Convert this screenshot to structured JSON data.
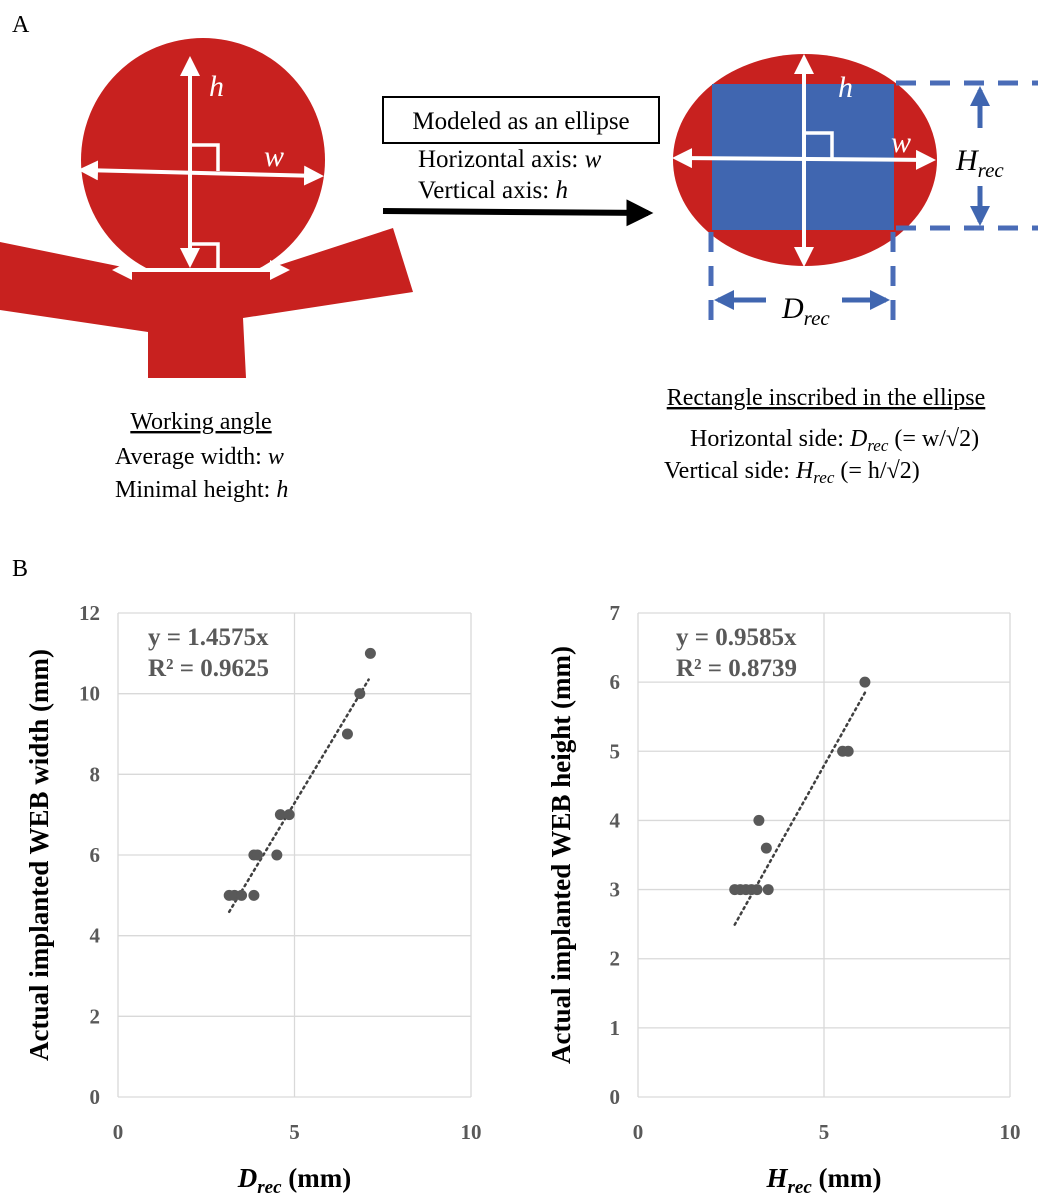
{
  "panel_a": {
    "label": "A",
    "h_symbol": "h",
    "w_symbol": "w",
    "box_title": "Modeled as an ellipse",
    "horizontal_axis_prefix": "Horizontal axis: ",
    "vertical_axis_prefix": "Vertical axis: ",
    "h_rec": "H",
    "d_rec": "D",
    "rec_subscript": "rec",
    "left_caption": {
      "title": "Working angle",
      "width_prefix": "Average width: ",
      "height_prefix": "Minimal height: "
    },
    "right_caption": {
      "title": "Rectangle inscribed in the ellipse",
      "horizontal_prefix": "Horizontal side: ",
      "horizontal_formula": " (= w/√2)",
      "vertical_prefix": "Vertical side: ",
      "vertical_formula": " (= h/√2)"
    },
    "colors": {
      "red": "#C8211F",
      "blue": "#4066B0",
      "blue_dashed": "#4A6CB7"
    }
  },
  "panel_b": {
    "label": "B"
  },
  "chart_data": [
    {
      "type": "scatter",
      "xlabel_main": "D",
      "xlabel_sub": "rec",
      "xlabel_unit": " (mm)",
      "ylabel": "Actual implanted WEB width (mm)",
      "xlim": [
        0,
        10
      ],
      "ylim": [
        0,
        12
      ],
      "xticks": [
        0,
        5,
        10
      ],
      "yticks": [
        0,
        2,
        4,
        6,
        8,
        10,
        12
      ],
      "grid": true,
      "equation": "y = 1.4575x",
      "r2": "R² = 0.9625",
      "trendline": {
        "slope": 1.4575,
        "x_range": [
          3.15,
          7.1
        ]
      },
      "points": [
        {
          "x": 3.15,
          "y": 5
        },
        {
          "x": 3.3,
          "y": 5
        },
        {
          "x": 3.5,
          "y": 5
        },
        {
          "x": 3.85,
          "y": 5
        },
        {
          "x": 3.85,
          "y": 6
        },
        {
          "x": 3.95,
          "y": 6
        },
        {
          "x": 4.5,
          "y": 6
        },
        {
          "x": 4.6,
          "y": 7
        },
        {
          "x": 4.85,
          "y": 7
        },
        {
          "x": 6.5,
          "y": 9
        },
        {
          "x": 6.85,
          "y": 10
        },
        {
          "x": 7.15,
          "y": 11
        }
      ],
      "marker_color": "#595959"
    },
    {
      "type": "scatter",
      "xlabel_main": "H",
      "xlabel_sub": "rec",
      "xlabel_unit": " (mm)",
      "ylabel": "Actual implanted WEB height (mm)",
      "xlim": [
        0,
        10
      ],
      "ylim": [
        0,
        7
      ],
      "xticks": [
        0,
        5,
        10
      ],
      "yticks": [
        0,
        1,
        2,
        3,
        4,
        5,
        6,
        7
      ],
      "grid": true,
      "equation": "y = 0.9585x",
      "r2": "R² = 0.8739",
      "trendline": {
        "slope": 0.9585,
        "x_range": [
          2.6,
          6.1
        ]
      },
      "points": [
        {
          "x": 2.6,
          "y": 3
        },
        {
          "x": 2.75,
          "y": 3
        },
        {
          "x": 2.9,
          "y": 3
        },
        {
          "x": 3.05,
          "y": 3
        },
        {
          "x": 3.2,
          "y": 3
        },
        {
          "x": 3.5,
          "y": 3
        },
        {
          "x": 3.25,
          "y": 4
        },
        {
          "x": 3.45,
          "y": 3.6
        },
        {
          "x": 5.5,
          "y": 5
        },
        {
          "x": 5.65,
          "y": 5
        },
        {
          "x": 6.1,
          "y": 6
        }
      ],
      "marker_color": "#595959"
    }
  ]
}
